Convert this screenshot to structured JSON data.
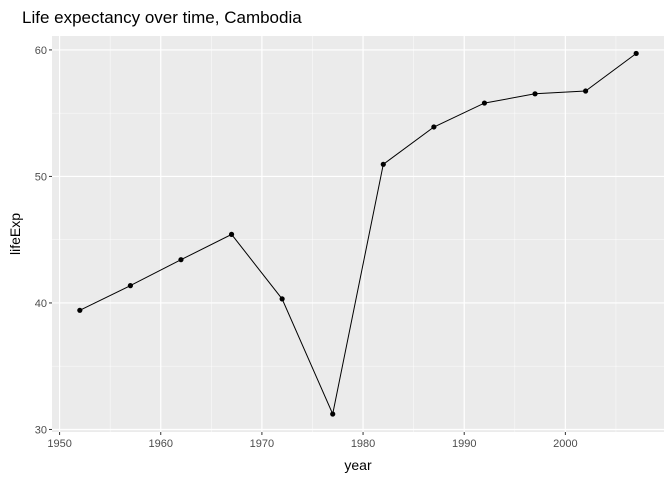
{
  "chart_data": {
    "type": "line",
    "title": "Life expectancy over time, Cambodia",
    "xlabel": "year",
    "ylabel": "lifeExp",
    "x": [
      1952,
      1957,
      1962,
      1967,
      1972,
      1977,
      1982,
      1987,
      1992,
      1997,
      2002,
      2007
    ],
    "y": [
      39.42,
      41.37,
      43.42,
      45.42,
      40.32,
      31.22,
      50.96,
      53.91,
      55.8,
      56.53,
      56.75,
      59.72
    ],
    "xlim": [
      1949.25,
      2009.75
    ],
    "ylim": [
      29.8,
      61.1
    ],
    "x_ticks": [
      1950,
      1960,
      1970,
      1980,
      1990,
      2000
    ],
    "x_tick_labels": [
      "1950",
      "1960",
      "1970",
      "1980",
      "1990",
      "2000"
    ],
    "y_ticks": [
      30,
      40,
      50,
      60
    ],
    "y_tick_labels": [
      "30",
      "40",
      "50",
      "60"
    ],
    "grid": true,
    "legend": "none",
    "colors": {
      "panel_background": "#ebebeb",
      "grid_major": "#ffffff",
      "line": "#000000",
      "point": "#000000",
      "tick_label": "#4d4d4d",
      "tick_mark": "#333333"
    }
  }
}
